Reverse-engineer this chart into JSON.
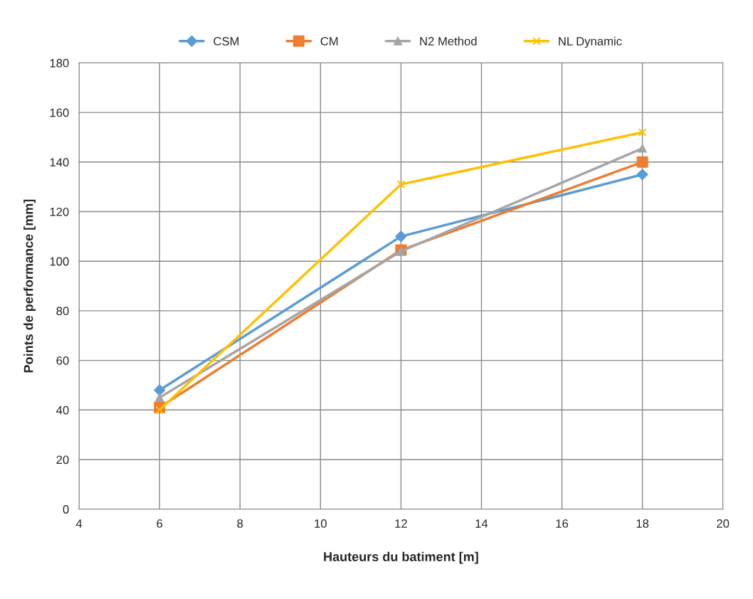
{
  "chart_data": {
    "type": "line",
    "xlabel": "Hauteurs du batiment [m]",
    "ylabel": "Points de performance [mm]",
    "x": [
      6,
      12,
      18
    ],
    "series": [
      {
        "name": "CSM",
        "color": "#5b9bd5",
        "marker": "diamond",
        "values": [
          48,
          110,
          135
        ]
      },
      {
        "name": "CM",
        "color": "#ed7d31",
        "marker": "square",
        "values": [
          41,
          104.5,
          140
        ]
      },
      {
        "name": "N2 Method",
        "color": "#a5a5a5",
        "marker": "triangle",
        "values": [
          45,
          104,
          145.5
        ]
      },
      {
        "name": "NL Dynamic",
        "color": "#ffc000",
        "marker": "cross",
        "values": [
          40,
          131,
          152
        ]
      }
    ],
    "xlim": [
      4,
      20
    ],
    "xticks": [
      4,
      6,
      8,
      10,
      12,
      14,
      16,
      18,
      20
    ],
    "ylim": [
      0,
      180
    ],
    "yticks": [
      0,
      20,
      40,
      60,
      80,
      100,
      120,
      140,
      160,
      180
    ],
    "grid": true,
    "legend": "top"
  }
}
